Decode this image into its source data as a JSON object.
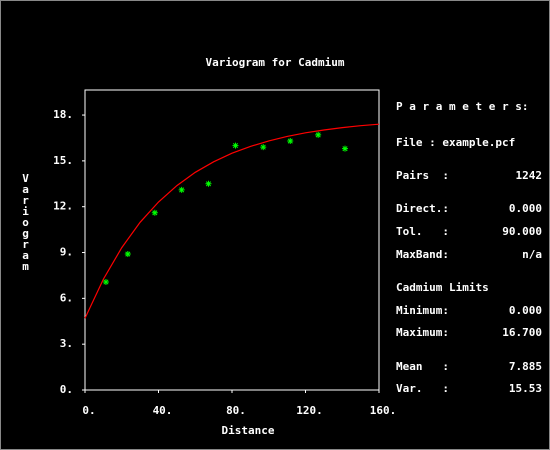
{
  "chart_data": {
    "type": "scatter",
    "title": "Variogram for Cadmium",
    "x_label": "Distance",
    "y_label": "Variogram",
    "x": [
      11.4,
      23.3,
      38,
      52.6,
      67.2,
      81.9,
      97,
      111.7,
      126.9,
      141.5
    ],
    "values": [
      7.07,
      8.9,
      11.6,
      13.1,
      13.5,
      16.0,
      15.9,
      16.3,
      16.7,
      15.8
    ],
    "color": "#00ff00",
    "curve": {
      "x": [
        0,
        10,
        20,
        30,
        40,
        50,
        60,
        70,
        80,
        90,
        100,
        110,
        120,
        130,
        140,
        150,
        160
      ],
      "values": [
        4.7,
        7.26,
        9.32,
        10.98,
        12.31,
        13.38,
        14.25,
        14.94,
        15.5,
        15.95,
        16.31,
        16.6,
        16.84,
        17.02,
        17.18,
        17.3,
        17.4
      ],
      "color": "#ff0000"
    },
    "xlim": [
      0,
      160
    ],
    "xticks": [
      {
        "value": 0,
        "label": "0."
      },
      {
        "value": 40,
        "label": "40."
      },
      {
        "value": 80,
        "label": "80."
      },
      {
        "value": 120,
        "label": "120."
      },
      {
        "value": 160,
        "label": "160."
      }
    ],
    "ylim": [
      0,
      19.64
    ],
    "yticks": [
      {
        "value": 0,
        "label": "0."
      },
      {
        "value": 3,
        "label": "3."
      },
      {
        "value": 6,
        "label": "6."
      },
      {
        "value": 9,
        "label": "9."
      },
      {
        "value": 12,
        "label": "12."
      },
      {
        "value": 15,
        "label": "15."
      },
      {
        "value": 18,
        "label": "18."
      }
    ],
    "grid": false
  },
  "panel": {
    "heading": "P a r a m e t e r s:",
    "rows": [
      {
        "label": "File : example.pcf"
      },
      {
        "label": "Pairs  :",
        "value": "1242"
      },
      {
        "label": "Direct.:",
        "value": "0.000"
      },
      {
        "label": "Tol.   :",
        "value": "90.000"
      },
      {
        "label": "MaxBand:",
        "value": "n/a"
      },
      {
        "label": "Cadmium Limits"
      },
      {
        "label": "Minimum:",
        "value": "0.000"
      },
      {
        "label": "Maximum:",
        "value": "16.700"
      },
      {
        "label": "Mean   :",
        "value": "7.885"
      },
      {
        "label": "Var.   :",
        "value": "15.53"
      }
    ]
  }
}
